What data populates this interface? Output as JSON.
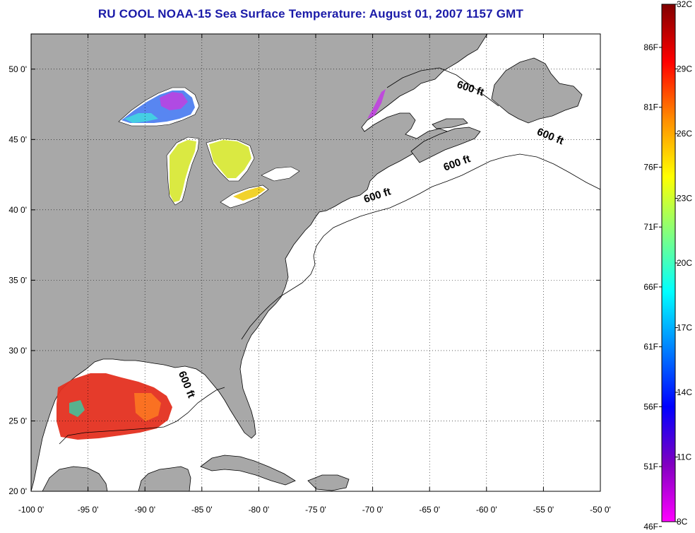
{
  "title": "RU COOL  NOAA-15  Sea Surface Temperature:  August 01, 2007 1157 GMT",
  "map": {
    "lon_range": [
      -100,
      -50
    ],
    "lat_range": [
      20,
      52.5
    ],
    "lon_ticks": [
      {
        "value": -100,
        "label": "-100 0'"
      },
      {
        "value": -95,
        "label": "-95 0'"
      },
      {
        "value": -90,
        "label": "-90 0'"
      },
      {
        "value": -85,
        "label": "-85 0'"
      },
      {
        "value": -80,
        "label": "-80 0'"
      },
      {
        "value": -75,
        "label": "-75 0'"
      },
      {
        "value": -70,
        "label": "-70 0'"
      },
      {
        "value": -65,
        "label": "-65 0'"
      },
      {
        "value": -60,
        "label": "-60 0'"
      },
      {
        "value": -55,
        "label": "-55 0'"
      },
      {
        "value": -50,
        "label": "-50 0'"
      }
    ],
    "lat_ticks": [
      {
        "value": 20,
        "label": "20 0'"
      },
      {
        "value": 25,
        "label": "25 0'"
      },
      {
        "value": 30,
        "label": "30 0'"
      },
      {
        "value": 35,
        "label": "35 0'"
      },
      {
        "value": 40,
        "label": "40 0'"
      },
      {
        "value": 45,
        "label": "45 0'"
      },
      {
        "value": 50,
        "label": "50 0'"
      }
    ],
    "grid": "dotted",
    "contour_labels": [
      {
        "text": "600 ft",
        "lon": -69.5,
        "lat": 40.8,
        "rotate": -18
      },
      {
        "text": "600 ft",
        "lon": -62.5,
        "lat": 43.1,
        "rotate": -20
      },
      {
        "text": "600 ft",
        "lon": -54.5,
        "lat": 45.0,
        "rotate": 22
      },
      {
        "text": "600 ft",
        "lon": -61.5,
        "lat": 48.4,
        "rotate": 18
      },
      {
        "text": "600 ft",
        "lon": -86.6,
        "lat": 27.5,
        "rotate": 68
      }
    ],
    "colors": {
      "land": "#a8a8a8",
      "ocean": "#ffffff",
      "coast": "#000000"
    }
  },
  "colorbar": {
    "celsius_labels": [
      {
        "value": 32,
        "label": "32C"
      },
      {
        "value": 29,
        "label": "29C"
      },
      {
        "value": 26,
        "label": "26C"
      },
      {
        "value": 23,
        "label": "23C"
      },
      {
        "value": 20,
        "label": "20C"
      },
      {
        "value": 17,
        "label": "17C"
      },
      {
        "value": 14,
        "label": "14C"
      },
      {
        "value": 11,
        "label": "11C"
      },
      {
        "value": 8,
        "label": "8C"
      }
    ],
    "fahrenheit_labels": [
      {
        "value": 86,
        "label": "86F"
      },
      {
        "value": 81,
        "label": "81F"
      },
      {
        "value": 76,
        "label": "76F"
      },
      {
        "value": 71,
        "label": "71F"
      },
      {
        "value": 66,
        "label": "66F"
      },
      {
        "value": 61,
        "label": "61F"
      },
      {
        "value": 56,
        "label": "56F"
      },
      {
        "value": 51,
        "label": "51F"
      },
      {
        "value": 46,
        "label": "46F"
      }
    ],
    "gradient": [
      "#800000",
      "#ff0000",
      "#ff8c00",
      "#ffff00",
      "#80ff80",
      "#00ffff",
      "#0080ff",
      "#0000ff",
      "#8000c0",
      "#ff00ff"
    ]
  }
}
